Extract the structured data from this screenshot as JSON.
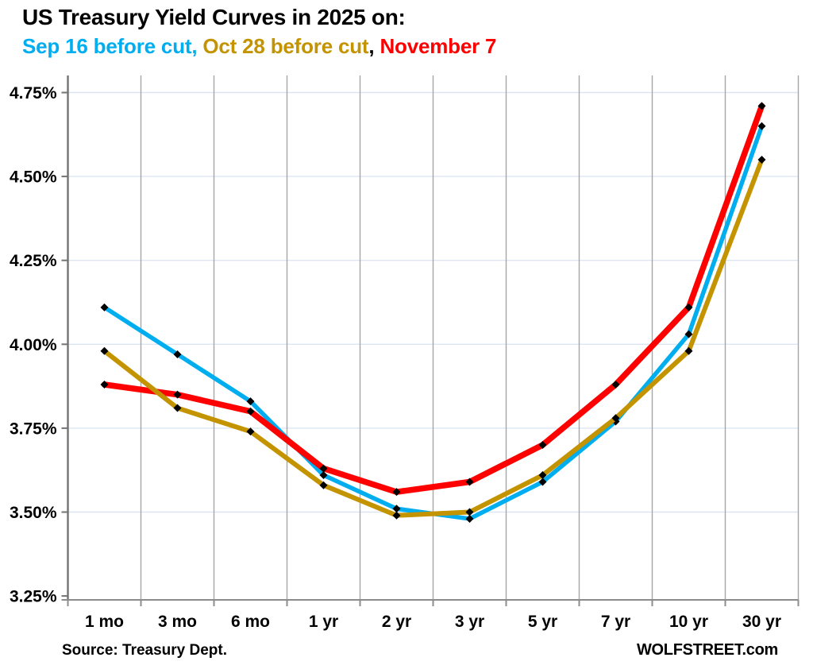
{
  "header": {
    "title": "US Treasury Yield Curves in 2025 on:",
    "subtitle_segments": [
      {
        "text": "Sep 16 before cut,",
        "color": "#00AEEF"
      },
      {
        "text": " Oct 28 before cut",
        "color": "#C49300"
      },
      {
        "text": ",",
        "color": "#000000"
      },
      {
        "text": " November 7",
        "color": "#FE0000"
      }
    ]
  },
  "footer": {
    "source": "Source: Treasury Dept.",
    "brand": "WOLFSTREET.com"
  },
  "chart_data": {
    "type": "line",
    "title": "US Treasury Yield Curves in 2025",
    "categories": [
      "1 mo",
      "3 mo",
      "6 mo",
      "1 yr",
      "2 yr",
      "3 yr",
      "5 yr",
      "7 yr",
      "10 yr",
      "30 yr"
    ],
    "series": [
      {
        "name": "Sep 16 before cut",
        "color": "#00AEEF",
        "stroke_width": 5.5,
        "values": [
          4.11,
          3.97,
          3.83,
          3.61,
          3.51,
          3.48,
          3.59,
          3.77,
          4.03,
          4.65
        ]
      },
      {
        "name": "Oct 28 before cut",
        "color": "#C49300",
        "stroke_width": 6,
        "values": [
          3.98,
          3.81,
          3.74,
          3.58,
          3.49,
          3.5,
          3.61,
          3.78,
          3.98,
          4.55
        ]
      },
      {
        "name": "November 7",
        "color": "#FE0000",
        "stroke_width": 7.5,
        "values": [
          3.88,
          3.85,
          3.8,
          3.63,
          3.56,
          3.59,
          3.7,
          3.88,
          4.11,
          4.71
        ]
      }
    ],
    "draw_order": [
      0,
      2,
      1
    ],
    "marker": {
      "shape": "diamond",
      "color": "#000000",
      "size": 5
    },
    "ylim": [
      3.25,
      4.75
    ],
    "ytick_values": [
      4.75,
      4.5,
      4.25,
      4.0,
      3.75,
      3.5,
      3.25
    ],
    "ytick_labels": [
      "4.75%",
      "4.50%",
      "4.25%",
      "4.00%",
      "3.75%",
      "3.50%",
      "3.25%"
    ],
    "grid": {
      "vertical_color": "#A6A6A6",
      "horizontal_color": "#DCE6F2",
      "yaxis_color": "#737373",
      "xaxis_color": "#8C8C8C"
    },
    "legend_position": "in-title"
  }
}
